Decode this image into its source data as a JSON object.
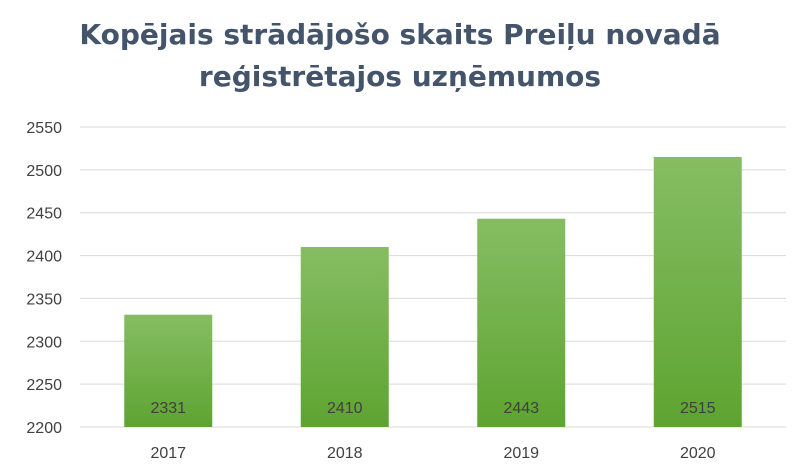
{
  "chart_data": {
    "type": "bar",
    "title_lines": [
      "Kopējais strādājošo skaits Preiļu novadā",
      "reģistrētajos uzņēmumos"
    ],
    "categories": [
      "2017",
      "2018",
      "2019",
      "2020"
    ],
    "values": [
      2331,
      2410,
      2443,
      2515
    ],
    "data_labels": [
      "2331",
      "2410",
      "2443",
      "2515"
    ],
    "ylim": [
      2200,
      2550
    ],
    "yticks": [
      2200,
      2250,
      2300,
      2350,
      2400,
      2450,
      2500,
      2550
    ],
    "grid": true,
    "legend": "none",
    "xlabel": "",
    "ylabel": "",
    "colors": {
      "bar_top": "#86bd63",
      "bar_bottom": "#5ea431",
      "title": "#44546a",
      "grid": "#d9d9d9",
      "text": "#404040"
    }
  }
}
